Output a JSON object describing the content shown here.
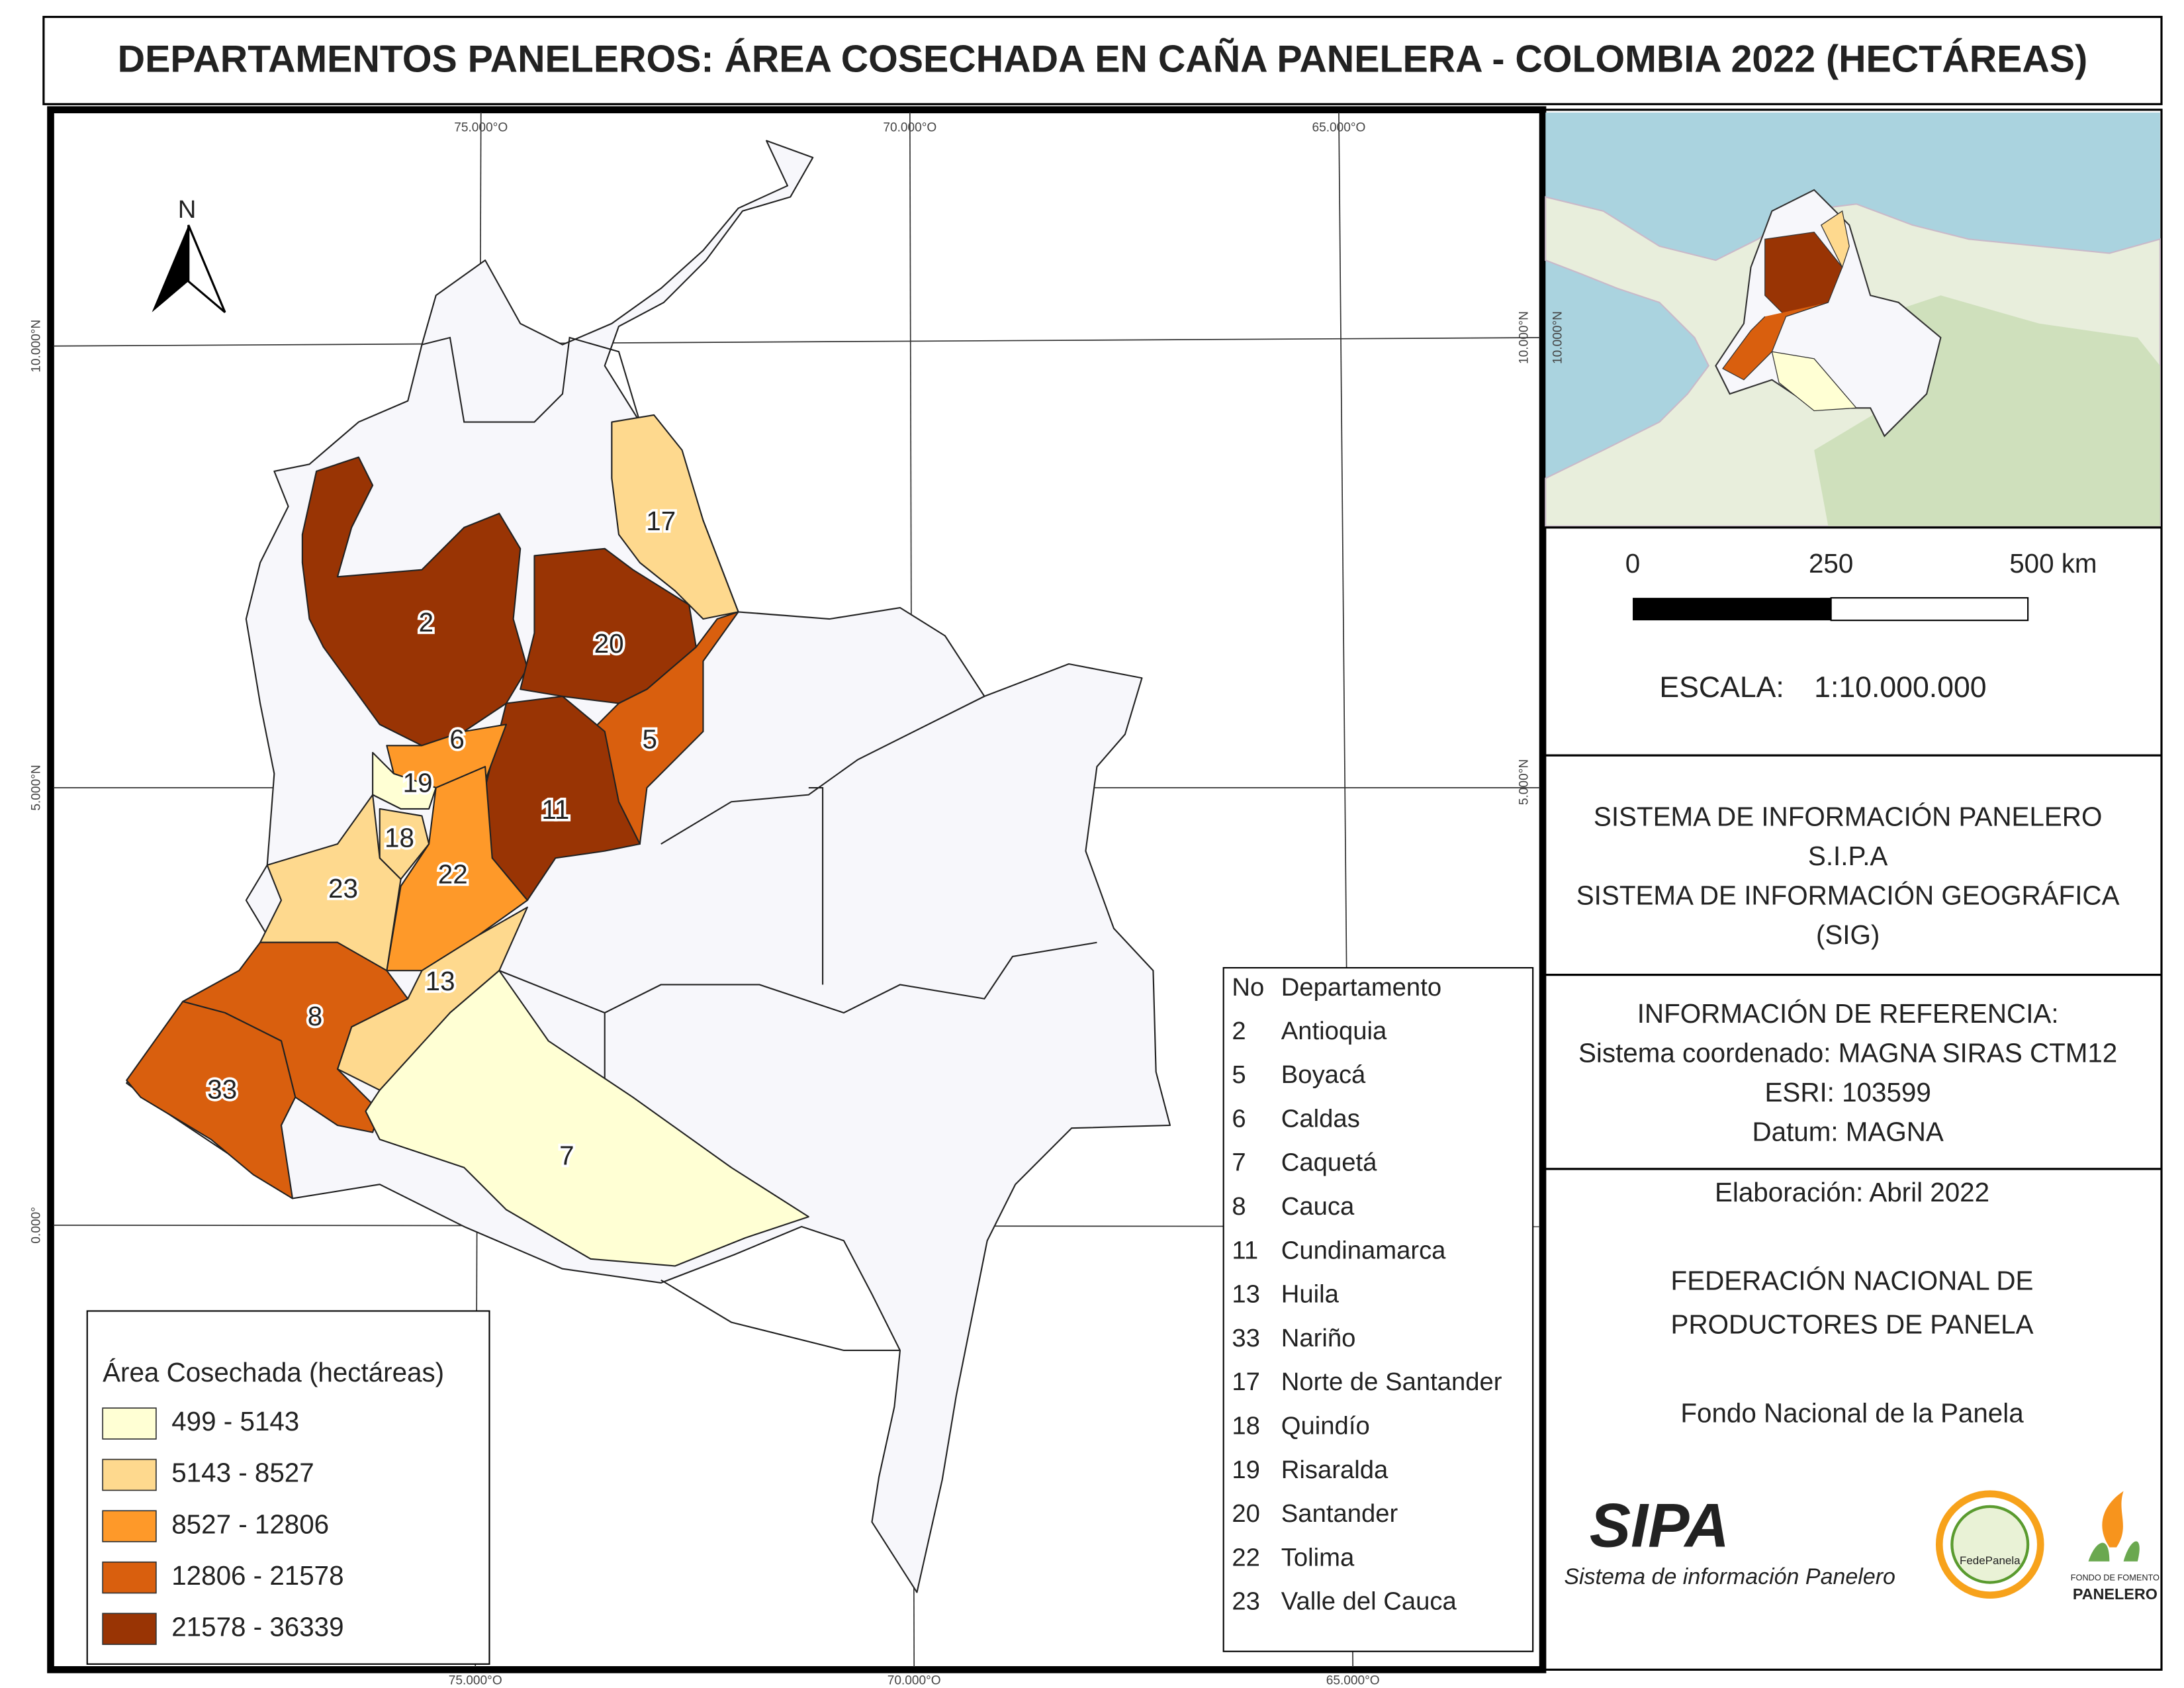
{
  "title": "DEPARTAMENTOS PANELEROS: ÁREA COSECHADA EN CAÑA PANELERA - COLOMBIA 2022 (HECTÁREAS)",
  "map": {
    "north": "N",
    "grid_labels": {
      "top": [
        "75.000°O",
        "70.000°O",
        "65.000°O"
      ],
      "bottom": [
        "75.000°O",
        "70.000°O",
        "65.000°O"
      ],
      "left": [
        "10.000°N",
        "5.000°N",
        "0.000°"
      ],
      "right": [
        "10.000°N",
        "5.000°N"
      ]
    },
    "department_labels": [
      "17",
      "2",
      "20",
      "6",
      "5",
      "19",
      "11",
      "18",
      "22",
      "23",
      "13",
      "8",
      "33",
      "7"
    ]
  },
  "legend": {
    "title": "Área Cosechada (hectáreas)",
    "classes": [
      {
        "label": "499 - 5143",
        "color": "#ffffd4"
      },
      {
        "label": "5143 - 8527",
        "color": "#fed98e"
      },
      {
        "label": "8527 - 12806",
        "color": "#fe9929"
      },
      {
        "label": "12806 - 21578",
        "color": "#d95f0e"
      },
      {
        "label": "21578 - 36339",
        "color": "#993404"
      }
    ]
  },
  "department_table": {
    "header": [
      "No",
      "Departamento"
    ],
    "rows": [
      [
        "2",
        "Antioquia"
      ],
      [
        "5",
        "Boyacá"
      ],
      [
        "6",
        "Caldas"
      ],
      [
        "7",
        "Caquetá"
      ],
      [
        "8",
        "Cauca"
      ],
      [
        "11",
        "Cundinamarca"
      ],
      [
        "13",
        "Huila"
      ],
      [
        "33",
        "Nariño"
      ],
      [
        "17",
        "Norte de Santander"
      ],
      [
        "18",
        "Quindío"
      ],
      [
        "19",
        "Risaralda"
      ],
      [
        "20",
        "Santander"
      ],
      [
        "22",
        "Tolima"
      ],
      [
        "23",
        "Valle del Cauca"
      ]
    ]
  },
  "scale_bar": {
    "labels": [
      "0",
      "250",
      "500 km"
    ],
    "scale_label": "ESCALA:",
    "scale": "1:10.000.000"
  },
  "system": [
    "SISTEMA DE INFORMACIÓN PANELERO",
    "S.I.P.A",
    "SISTEMA DE INFORMACIÓN GEOGRÁFICA",
    "(SIG)"
  ],
  "reference": [
    "INFORMACIÓN DE REFERENCIA:",
    "Sistema coordenado: MAGNA SIRAS CTM12",
    "ESRI: 103599",
    "Datum: MAGNA"
  ],
  "credits": {
    "date": "Elaboración: Abril 2022",
    "federation": [
      "FEDERACIÓN NACIONAL DE",
      "PRODUCTORES DE PANELA"
    ],
    "fund": "Fondo Nacional de la Panela"
  },
  "logos": {
    "sipa": "SIPA",
    "sipa_tagline": "Sistema de información Panelero",
    "fedepanela": "FedePanela",
    "fondo": [
      "FONDO DE FOMENTO",
      "PANELERO"
    ]
  }
}
